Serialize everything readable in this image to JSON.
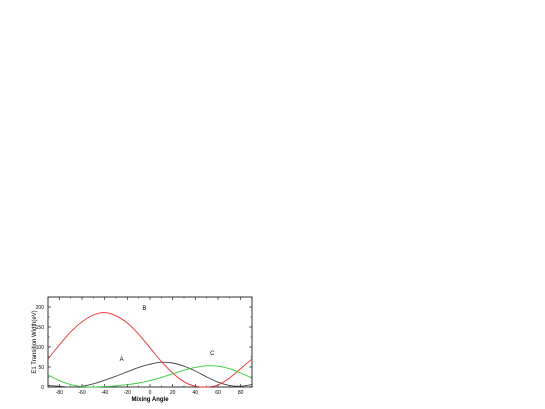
{
  "chart_data": {
    "type": "line",
    "title": "",
    "xlabel": "Mixing Angle",
    "ylabel": "E1 Transition Width(eV)",
    "xlim": [
      -90,
      90
    ],
    "ylim": [
      0,
      225
    ],
    "xticks": [
      -80,
      -60,
      -40,
      -20,
      0,
      20,
      40,
      60,
      80
    ],
    "yticks": [
      0,
      50,
      100,
      150,
      200
    ],
    "grid": false,
    "series": [
      {
        "name": "A",
        "color": "#444444",
        "x": [
          -90,
          -80,
          -70,
          -60,
          -50,
          -40,
          -30,
          -20,
          -10,
          0,
          10,
          20,
          30,
          40,
          50,
          60,
          70,
          80,
          90
        ],
        "y": [
          4,
          2,
          0,
          2,
          8,
          17,
          27,
          38,
          49,
          57,
          62,
          60,
          52,
          40,
          25,
          12,
          4,
          2,
          6
        ]
      },
      {
        "name": "B",
        "color": "#e83030",
        "x": [
          -90,
          -80,
          -70,
          -60,
          -50,
          -40,
          -30,
          -20,
          -10,
          0,
          10,
          20,
          30,
          40,
          50,
          60,
          70,
          80,
          90
        ],
        "y": [
          70,
          105,
          138,
          163,
          180,
          186,
          178,
          160,
          132,
          98,
          64,
          35,
          13,
          2,
          0,
          5,
          22,
          46,
          70
        ]
      },
      {
        "name": "C",
        "color": "#33cc33",
        "x": [
          -90,
          -80,
          -70,
          -60,
          -50,
          -40,
          -30,
          -20,
          -10,
          0,
          10,
          20,
          30,
          40,
          50,
          60,
          70,
          80,
          90
        ],
        "y": [
          30,
          16,
          6,
          1,
          0,
          1,
          3,
          6,
          10,
          16,
          24,
          33,
          42,
          49,
          53,
          52,
          46,
          35,
          22
        ]
      }
    ],
    "annotations": [
      {
        "text": "A",
        "x": -25,
        "y": 65
      },
      {
        "text": "B",
        "x": -5,
        "y": 192
      },
      {
        "text": "C",
        "x": 55,
        "y": 80
      }
    ]
  }
}
